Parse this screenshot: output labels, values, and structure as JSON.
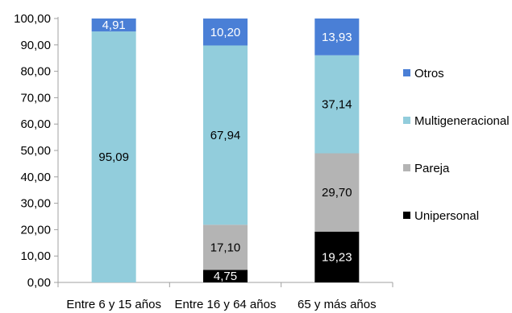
{
  "chart_data": {
    "type": "bar",
    "stacked": true,
    "categories": [
      "Entre 6 y 15 años",
      "Entre 16 y 64 años",
      "65 y más años"
    ],
    "ylim": [
      0,
      100
    ],
    "yticks": [
      "0,00",
      "10,00",
      "20,00",
      "30,00",
      "40,00",
      "50,00",
      "60,00",
      "70,00",
      "80,00",
      "90,00",
      "100,00"
    ],
    "series": [
      {
        "name": "Unipersonal",
        "color": "#000000",
        "label_color": "#ffffff",
        "values": [
          0,
          4.75,
          19.23
        ],
        "labels": [
          "",
          "4,75",
          "19,23"
        ]
      },
      {
        "name": "Pareja",
        "color": "#b4b4b4",
        "label_color": "#000000",
        "values": [
          0,
          17.1,
          29.7
        ],
        "labels": [
          "",
          "17,10",
          "29,70"
        ]
      },
      {
        "name": "Multigeneracional",
        "color": "#92cddc",
        "label_color": "#000000",
        "values": [
          95.09,
          67.94,
          37.14
        ],
        "labels": [
          "95,09",
          "67,94",
          "37,14"
        ]
      },
      {
        "name": "Otros",
        "color": "#4a7fd6",
        "label_color": "#ffffff",
        "values": [
          4.91,
          10.2,
          13.93
        ],
        "labels": [
          "4,91",
          "10,20",
          "13,93"
        ]
      }
    ],
    "legend_order": [
      "Otros",
      "Multigeneracional",
      "Pareja",
      "Unipersonal"
    ],
    "legend_position": "right"
  }
}
